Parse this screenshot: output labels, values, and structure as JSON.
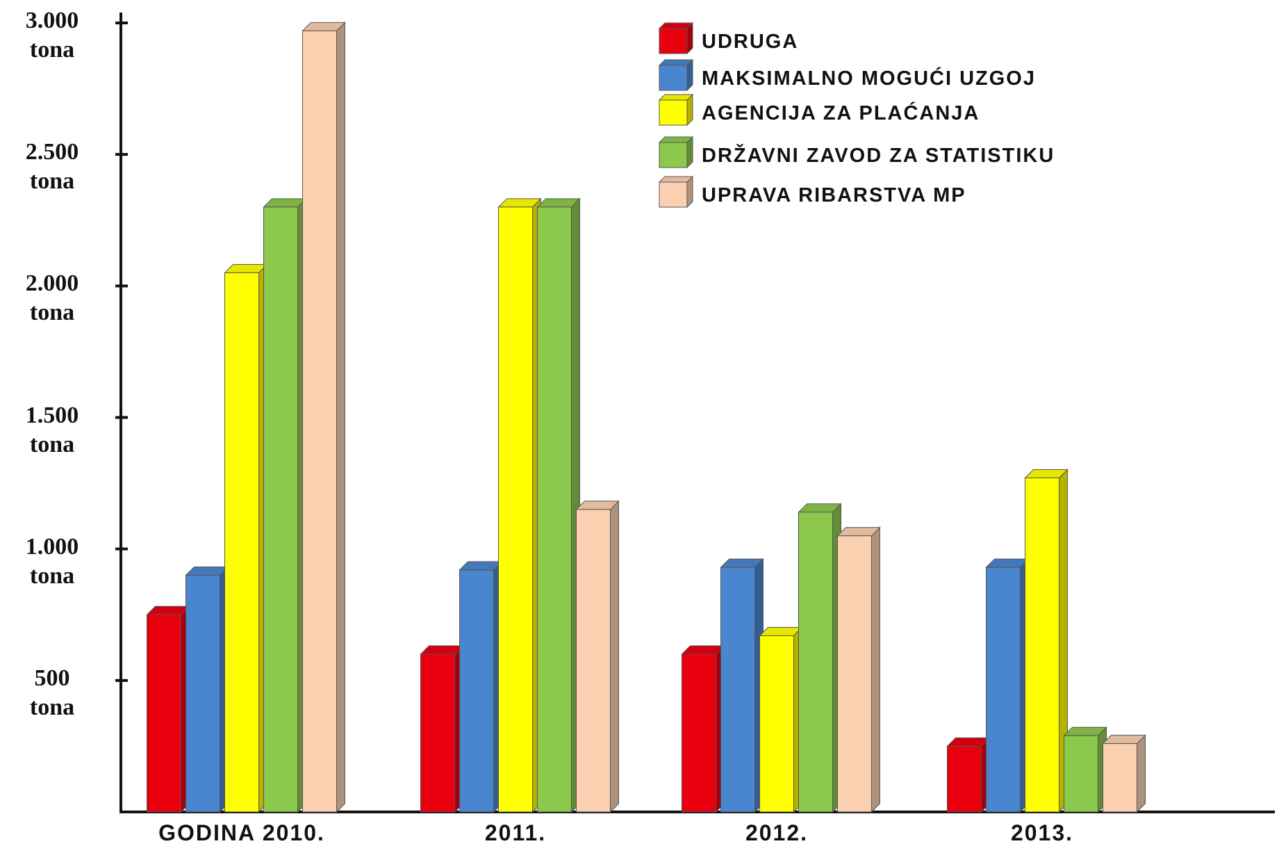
{
  "chart_data": {
    "type": "bar3d",
    "categories": [
      "GODINA 2010.",
      "2011.",
      "2012.",
      "2013."
    ],
    "series": [
      {
        "name": "UDRUGA",
        "color": "#e8000f",
        "values": [
          750,
          600,
          600,
          250
        ]
      },
      {
        "name": "MAKSIMALNO MOGUĆI UZGOJ",
        "color": "#4a86d0",
        "values": [
          900,
          920,
          930,
          930
        ]
      },
      {
        "name": "AGENCIJA ZA PLAĆANJA",
        "color": "#ffff00",
        "values": [
          2050,
          2300,
          670,
          1270
        ]
      },
      {
        "name": "DRŽAVNI ZAVOD ZA STATISTIKU",
        "color": "#8cc84b",
        "values": [
          2300,
          2300,
          1140,
          290
        ]
      },
      {
        "name": "UPRAVA RIBARSTVA MP",
        "color": "#fbd0b0",
        "values": [
          2970,
          1150,
          1050,
          260
        ]
      }
    ],
    "ylim": [
      0,
      3000
    ],
    "yticks": [
      {
        "value": 500,
        "label": "500\ntona"
      },
      {
        "value": 1000,
        "label": "1.000\ntona"
      },
      {
        "value": 1500,
        "label": "1.500\ntona"
      },
      {
        "value": 2000,
        "label": "2.000\ntona"
      },
      {
        "value": 2500,
        "label": "2.500\ntona"
      },
      {
        "value": 3000,
        "label": "3.000\ntona"
      }
    ]
  }
}
